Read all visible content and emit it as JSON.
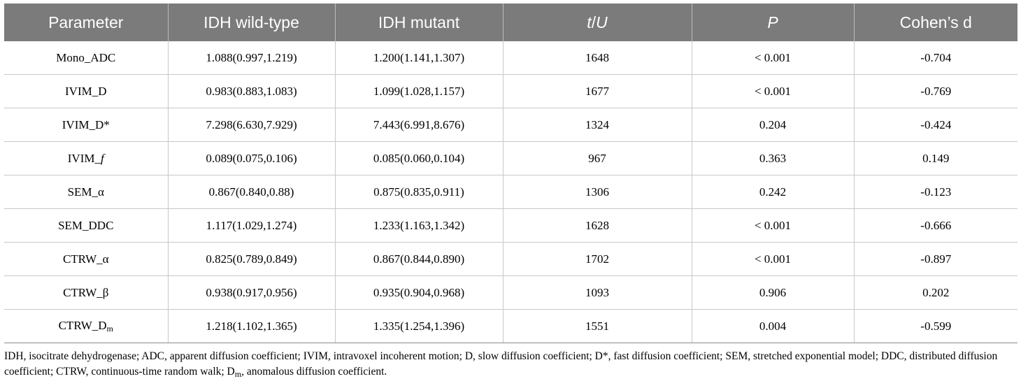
{
  "table": {
    "headers": {
      "parameter": "Parameter",
      "wild": "IDH wild-type",
      "mutant": "IDH mutant",
      "tu_t": "t",
      "tu_sep": "/",
      "tu_u": "U",
      "p": "P",
      "d": "Cohen’s d"
    },
    "rows": [
      {
        "param": "Mono_ADC",
        "wild": "1.088(0.997,1.219)",
        "mutant": "1.200(1.141,1.307)",
        "tu": "1648",
        "p": "< 0.001",
        "d": "-0.704"
      },
      {
        "param": "IVIM_D",
        "wild": "0.983(0.883,1.083)",
        "mutant": "1.099(1.028,1.157)",
        "tu": "1677",
        "p": "< 0.001",
        "d": "-0.769"
      },
      {
        "param": "IVIM_D*",
        "wild": "7.298(6.630,7.929)",
        "mutant": "7.443(6.991,8.676)",
        "tu": "1324",
        "p": "0.204",
        "d": "-0.424"
      },
      {
        "param_prefix": "IVIM_",
        "param_italic": "f",
        "wild": "0.089(0.075,0.106)",
        "mutant": "0.085(0.060,0.104)",
        "tu": "967",
        "p": "0.363",
        "d": "0.149"
      },
      {
        "param": "SEM_α",
        "wild": "0.867(0.840,0.88)",
        "mutant": "0.875(0.835,0.911)",
        "tu": "1306",
        "p": "0.242",
        "d": "-0.123"
      },
      {
        "param": "SEM_DDC",
        "wild": "1.117(1.029,1.274)",
        "mutant": "1.233(1.163,1.342)",
        "tu": "1628",
        "p": "< 0.001",
        "d": "-0.666"
      },
      {
        "param": "CTRW_α",
        "wild": "0.825(0.789,0.849)",
        "mutant": "0.867(0.844,0.890)",
        "tu": "1702",
        "p": "< 0.001",
        "d": "-0.897"
      },
      {
        "param": "CTRW_β",
        "wild": "0.938(0.917,0.956)",
        "mutant": "0.935(0.904,0.968)",
        "tu": "1093",
        "p": "0.906",
        "d": "0.202"
      },
      {
        "param_prefix": "CTRW_D",
        "param_sub": "m",
        "wild": "1.218(1.102,1.365)",
        "mutant": "1.335(1.254,1.396)",
        "tu": "1551",
        "p": "0.004",
        "d": "-0.599"
      }
    ]
  },
  "footnote": {
    "before_sub": "IDH, isocitrate dehydrogenase; ADC, apparent diffusion coefficient; IVIM, intravoxel incoherent motion; D, slow diffusion coefficient; D*, fast diffusion coefficient; SEM, stretched exponential model; DDC, distributed diffusion coefficient; CTRW, continuous-time random walk; D",
    "sub": "m",
    "after_sub": ", anomalous diffusion coefficient."
  }
}
